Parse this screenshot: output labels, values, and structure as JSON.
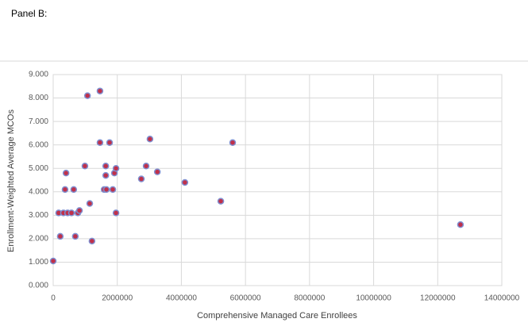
{
  "chart_data": {
    "type": "scatter",
    "title": "Panel B:",
    "x_label": "Comprehensive  Managed Care Enrollees",
    "y_label": "Enrollment-Weighted  Average MCOs",
    "x": [
      0,
      170000,
      320000,
      450000,
      570000,
      220000,
      400000,
      370000,
      640000,
      690000,
      770000,
      820000,
      990000,
      1070000,
      1140000,
      1210000,
      1460000,
      1460000,
      1640000,
      1640000,
      1590000,
      1660000,
      1760000,
      1860000,
      1910000,
      1960000,
      1960000,
      2750000,
      2900000,
      3020000,
      3250000,
      4110000,
      5230000,
      5600000,
      12710000
    ],
    "values": [
      1.05,
      3.1,
      3.1,
      3.1,
      3.1,
      2.1,
      4.8,
      4.1,
      4.1,
      2.1,
      3.1,
      3.2,
      5.1,
      8.1,
      3.5,
      1.9,
      8.3,
      6.1,
      5.1,
      4.7,
      4.1,
      4.1,
      6.1,
      4.1,
      4.8,
      5.0,
      3.1,
      4.55,
      5.1,
      6.25,
      4.85,
      4.4,
      3.6,
      6.1,
      2.6
    ],
    "color": "#c0304a",
    "edge_color": "#7f8fd0",
    "xlim": [
      0,
      14000000
    ],
    "ylim": [
      0,
      9
    ],
    "xticks": [
      0,
      2000000,
      4000000,
      6000000,
      8000000,
      10000000,
      12000000,
      14000000
    ],
    "yticks": [
      {
        "value": 0,
        "label": "0.000"
      },
      {
        "value": 1,
        "label": "1.000"
      },
      {
        "value": 2,
        "label": "2.000"
      },
      {
        "value": 3,
        "label": "3.000"
      },
      {
        "value": 4,
        "label": "4.000"
      },
      {
        "value": 5,
        "label": "5.000"
      },
      {
        "value": 6,
        "label": "6.000"
      },
      {
        "value": 7,
        "label": "7.000"
      },
      {
        "value": 8,
        "label": "8.000"
      },
      {
        "value": 9,
        "label": "9.000"
      }
    ],
    "grid": true
  }
}
